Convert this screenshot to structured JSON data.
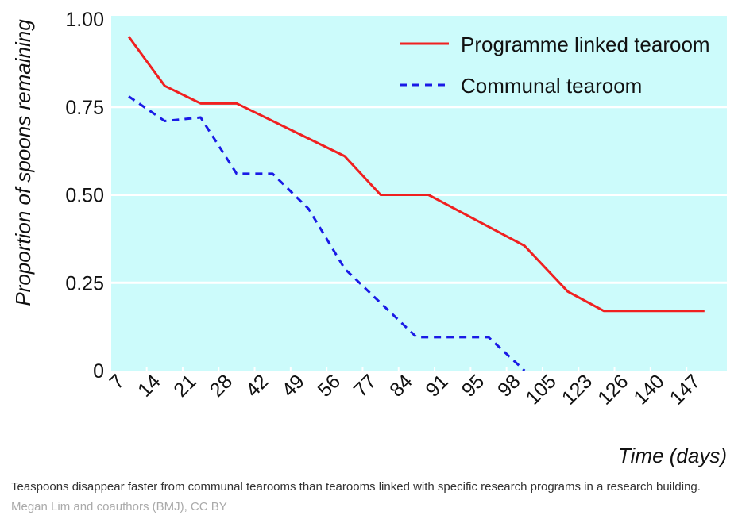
{
  "chart_data": {
    "type": "line",
    "title": "",
    "xlabel": "Time (days)",
    "ylabel": "Proportion of spoons remaining",
    "categories": [
      "7",
      "14",
      "21",
      "28",
      "42",
      "49",
      "56",
      "77",
      "84",
      "91",
      "95",
      "98",
      "105",
      "123",
      "126",
      "140",
      "147"
    ],
    "yticks": [
      "0",
      "0.25",
      "0.50",
      "0.75",
      "1.00"
    ],
    "ylim": [
      0,
      1
    ],
    "grid": "horizontal",
    "legend_position": "top-right",
    "x_note": "x given as category index (0 = day 7 ... 16 = day 147)",
    "series": [
      {
        "name": "Programme linked tearoom",
        "color": "#f02020",
        "style": "solid",
        "x": [
          0,
          1,
          2,
          3,
          6,
          7,
          8.33,
          11,
          12.2,
          13.2,
          16
        ],
        "values": [
          0.95,
          0.81,
          0.76,
          0.76,
          0.61,
          0.5,
          0.5,
          0.355,
          0.225,
          0.17,
          0.17
        ]
      },
      {
        "name": "Communal tearoom",
        "color": "#1a1ae6",
        "style": "dashed",
        "x": [
          0,
          1,
          2,
          3,
          4,
          5,
          6,
          8,
          10,
          11
        ],
        "values": [
          0.78,
          0.71,
          0.72,
          0.56,
          0.56,
          0.46,
          0.29,
          0.095,
          0.095,
          0
        ]
      }
    ],
    "background": "#ccfbfb"
  },
  "caption": {
    "text": "Teaspoons disappear faster from communal tearooms than tearooms linked with specific research programs in a research building.",
    "credit": "Megan Lim and coauthors (BMJ), CC BY"
  }
}
